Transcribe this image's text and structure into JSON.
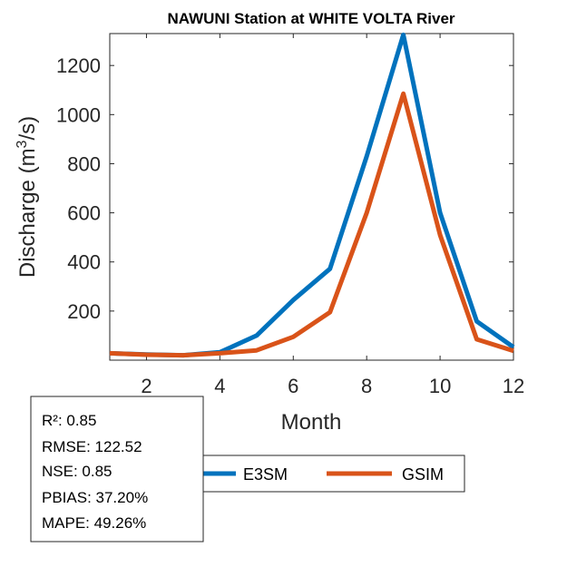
{
  "chart_data": {
    "type": "line",
    "title": "NAWUNI  Station at  WHITE VOLTA  River",
    "xlabel": "Month",
    "ylabel": "Discharge (m³/s)",
    "ylabel_main": "Discharge (m",
    "ylabel_sup": "3",
    "ylabel_tail": "/s)",
    "xlim": [
      1,
      12
    ],
    "ylim": [
      0,
      1330
    ],
    "xticks": [
      2,
      4,
      6,
      8,
      10,
      12
    ],
    "yticks": [
      200,
      400,
      600,
      800,
      1000,
      1200
    ],
    "grid": false,
    "legend_position": "bottom-center, outside axes",
    "x": [
      1,
      2,
      3,
      4,
      5,
      6,
      7,
      8,
      9,
      10,
      11,
      12
    ],
    "series": [
      {
        "name": "E3SM",
        "color": "#0072BD",
        "values": [
          28,
          23,
          20,
          32,
          100,
          245,
          372,
          830,
          1325,
          600,
          158,
          53
        ]
      },
      {
        "name": "GSIM",
        "color": "#D95319",
        "values": [
          28,
          22,
          20,
          28,
          40,
          95,
          195,
          600,
          1085,
          510,
          85,
          38
        ]
      }
    ]
  },
  "stats": [
    "R²: 0.85",
    "RMSE: 122.52",
    "NSE: 0.85",
    "PBIAS: 37.20%",
    "MAPE: 49.26%"
  ]
}
